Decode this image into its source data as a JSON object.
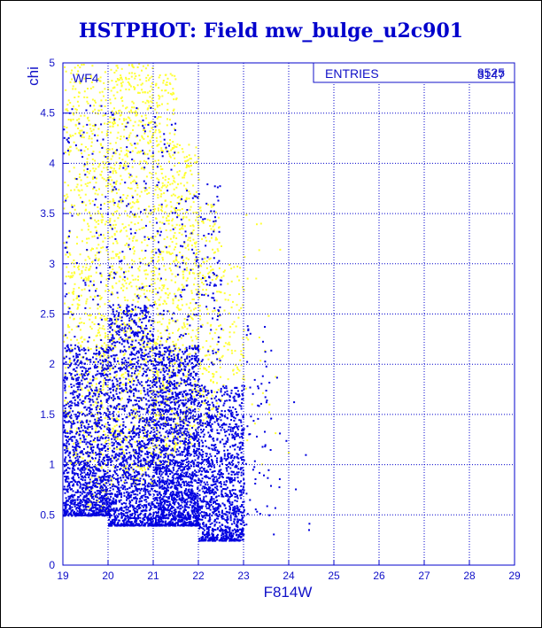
{
  "chart_data": {
    "type": "scatter",
    "title": "HSTPHOT: Field mw_bulge_u2c901",
    "xlabel": "F814W",
    "ylabel": "chi",
    "xlim": [
      19,
      29
    ],
    "ylim": [
      0,
      5
    ],
    "x_ticks": [
      "19",
      "20",
      "21",
      "22",
      "23",
      "24",
      "25",
      "26",
      "27",
      "28",
      "29"
    ],
    "y_ticks": [
      "0",
      "0.5",
      "1",
      "1.5",
      "2",
      "2.5",
      "3",
      "3.5",
      "4",
      "4.5",
      "5"
    ],
    "grid": true,
    "panel_label": "WF4",
    "stats_box": {
      "label": "ENTRIES",
      "values": [
        "8525",
        "3147"
      ]
    },
    "series": [
      {
        "color": "#ffff33",
        "density": [
          {
            "x": [
              19.0,
              19.5
            ],
            "y": [
              1.0,
              5.0
            ],
            "n": 320
          },
          {
            "x": [
              19.5,
              20.0
            ],
            "y": [
              0.5,
              5.0
            ],
            "n": 460
          },
          {
            "x": [
              20.0,
              21.0
            ],
            "y": [
              0.8,
              5.0
            ],
            "n": 900
          },
          {
            "x": [
              21.0,
              21.5
            ],
            "y": [
              1.0,
              4.9
            ],
            "n": 480
          },
          {
            "x": [
              21.5,
              22.0
            ],
            "y": [
              1.2,
              4.2
            ],
            "n": 330
          },
          {
            "x": [
              22.0,
              22.5
            ],
            "y": [
              1.4,
              3.6
            ],
            "n": 180
          },
          {
            "x": [
              22.5,
              23.0
            ],
            "y": [
              1.8,
              3.0
            ],
            "n": 70
          },
          {
            "x": [
              23.0,
              24.0
            ],
            "y": [
              1.0,
              3.5
            ],
            "n": 25
          }
        ]
      },
      {
        "color": "#0000e0",
        "density": [
          {
            "x": [
              19.0,
              20.0
            ],
            "y": [
              0.5,
              2.2
            ],
            "n": 1300
          },
          {
            "x": [
              20.0,
              21.0
            ],
            "y": [
              0.4,
              2.6
            ],
            "n": 1500
          },
          {
            "x": [
              21.0,
              22.0
            ],
            "y": [
              0.4,
              2.2
            ],
            "n": 1800
          },
          {
            "x": [
              22.0,
              23.0
            ],
            "y": [
              0.25,
              1.8
            ],
            "n": 1150
          },
          {
            "x": [
              23.0,
              23.6
            ],
            "y": [
              0.4,
              2.4
            ],
            "n": 60
          },
          {
            "x": [
              19.0,
              21.5
            ],
            "y": [
              2.2,
              4.6
            ],
            "n": 260
          },
          {
            "x": [
              21.5,
              22.5
            ],
            "y": [
              2.0,
              3.8
            ],
            "n": 140
          },
          {
            "x": [
              23.6,
              24.5
            ],
            "y": [
              0.3,
              2.0
            ],
            "n": 12
          }
        ]
      }
    ]
  }
}
